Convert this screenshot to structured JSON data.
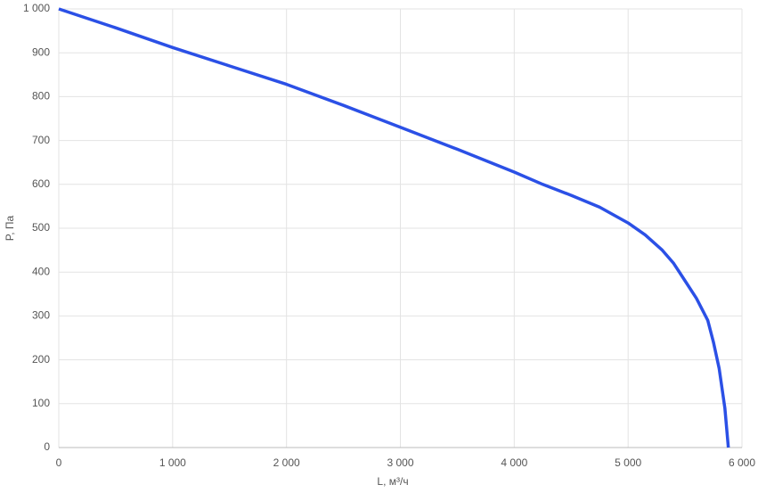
{
  "chart_data": {
    "type": "line",
    "x_label": "L, м³/ч",
    "y_label": "P, Па",
    "series": [
      {
        "name": "P",
        "color": "#2b50e6",
        "x": [
          0,
          500,
          1000,
          1500,
          2000,
          2500,
          3000,
          3500,
          4000,
          4250,
          4500,
          4750,
          5000,
          5150,
          5300,
          5400,
          5500,
          5600,
          5700,
          5750,
          5800,
          5850,
          5880
        ],
        "values": [
          1000,
          957,
          912,
          870,
          828,
          780,
          730,
          680,
          628,
          600,
          575,
          548,
          512,
          485,
          450,
          420,
          380,
          340,
          290,
          240,
          180,
          90,
          0
        ]
      }
    ],
    "xlim": [
      0,
      6000
    ],
    "xticks": [
      0,
      {
        "value": 1000,
        "label": "1 000"
      },
      {
        "value": 2000,
        "label": "2 000"
      },
      {
        "value": 3000,
        "label": "3 000"
      },
      {
        "value": 4000,
        "label": "4 000"
      },
      {
        "value": 5000,
        "label": "5 000"
      },
      {
        "value": 6000,
        "label": "6 000"
      }
    ],
    "ylim": [
      0,
      1000
    ],
    "yticks": [
      0,
      100,
      200,
      300,
      400,
      500,
      600,
      700,
      800,
      900,
      {
        "value": 1000,
        "label": "1 000"
      }
    ],
    "grid": true
  }
}
